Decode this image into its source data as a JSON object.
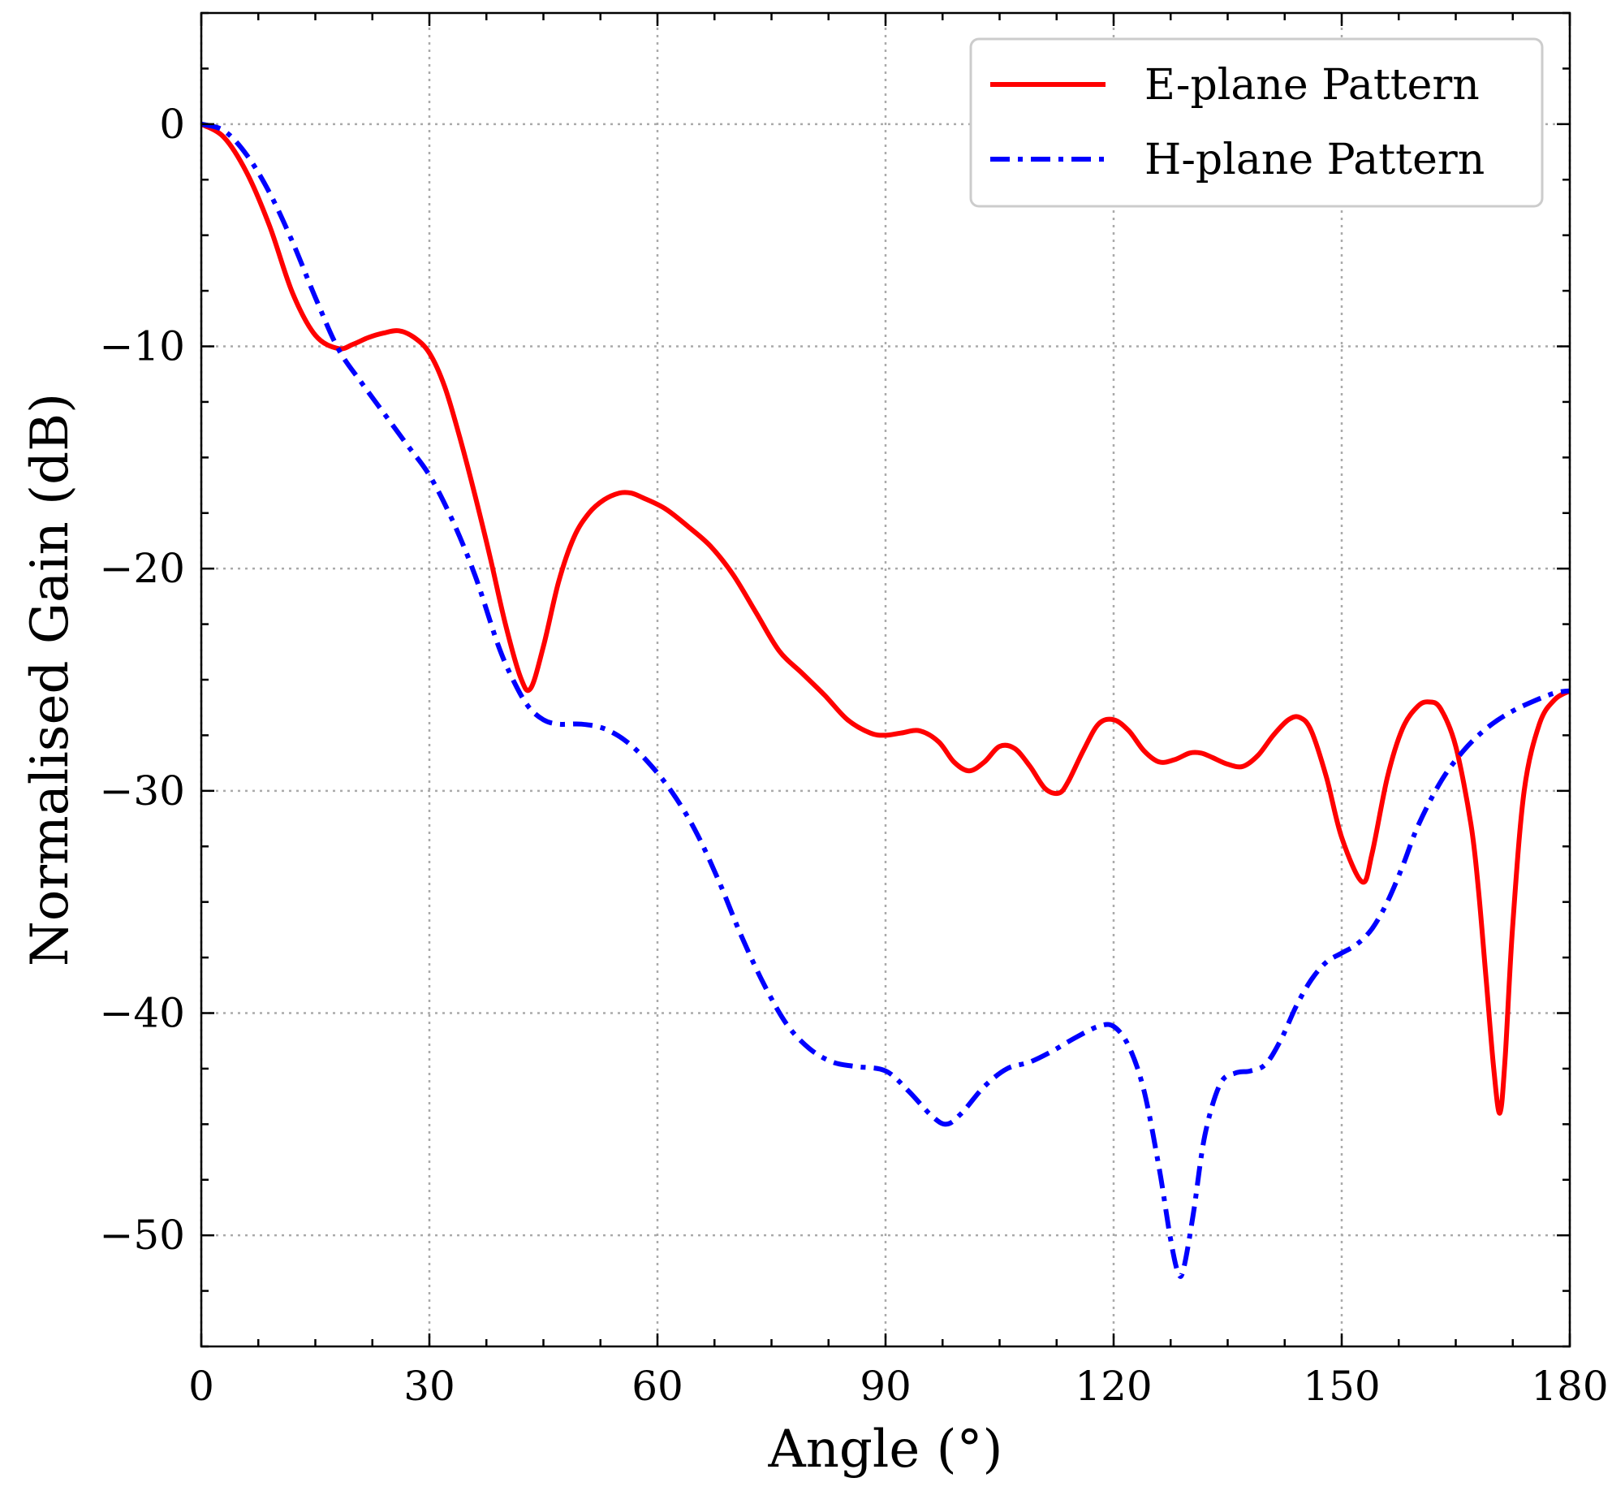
{
  "chart_data": {
    "type": "line",
    "title": "",
    "xlabel": "Angle (°)",
    "ylabel": "Normalised Gain (dB)",
    "xlim": [
      0,
      180
    ],
    "ylim": [
      -55,
      5
    ],
    "x_ticks": [
      0,
      30,
      60,
      90,
      120,
      150,
      180
    ],
    "y_ticks": [
      0,
      -10,
      -20,
      -30,
      -40,
      -50
    ],
    "x_tick_labels": [
      "0",
      "30",
      "60",
      "90",
      "120",
      "150",
      "180"
    ],
    "y_tick_labels": [
      "0",
      "−10",
      "−20",
      "−30",
      "−40",
      "−50"
    ],
    "grid": true,
    "legend_position": "top-right",
    "series": [
      {
        "name": "E-plane Pattern",
        "color": "#ff0000",
        "style": "solid",
        "x": [
          0,
          3,
          6,
          9,
          12,
          15,
          18,
          20,
          22,
          24,
          26,
          28,
          30,
          32,
          34,
          36,
          38,
          40,
          42,
          43.3,
          45,
          47,
          49,
          51,
          53,
          55,
          56.5,
          58,
          61,
          64,
          67,
          70,
          73,
          76,
          79,
          82,
          85,
          88,
          90,
          92,
          94.5,
          97,
          99,
          101,
          103,
          105,
          107,
          109,
          111,
          112.8,
          114,
          116,
          118,
          120,
          122,
          124,
          126,
          128,
          130,
          131.5,
          133,
          135,
          137,
          139,
          141,
          143,
          144.5,
          146,
          148,
          150,
          152.7,
          154,
          156,
          158,
          160,
          161.5,
          163,
          165,
          167,
          168,
          169,
          170,
          170.8,
          171.5,
          172.5,
          174,
          176,
          178,
          180
        ],
        "values": [
          0,
          -0.6,
          -2.2,
          -4.6,
          -7.6,
          -9.5,
          -10.1,
          -9.9,
          -9.6,
          -9.4,
          -9.3,
          -9.6,
          -10.3,
          -11.8,
          -14.1,
          -16.7,
          -19.5,
          -22.5,
          -24.9,
          -25.4,
          -23.5,
          -20.6,
          -18.6,
          -17.5,
          -16.9,
          -16.6,
          -16.6,
          -16.8,
          -17.3,
          -18.1,
          -19.0,
          -20.3,
          -22.0,
          -23.7,
          -24.7,
          -25.7,
          -26.8,
          -27.4,
          -27.5,
          -27.4,
          -27.3,
          -27.8,
          -28.7,
          -29.1,
          -28.7,
          -28.0,
          -28.1,
          -28.9,
          -29.9,
          -30.1,
          -29.6,
          -28.2,
          -27.0,
          -26.8,
          -27.3,
          -28.2,
          -28.7,
          -28.6,
          -28.3,
          -28.3,
          -28.5,
          -28.8,
          -28.9,
          -28.4,
          -27.5,
          -26.8,
          -26.7,
          -27.3,
          -29.4,
          -32.1,
          -34.1,
          -32.8,
          -29.4,
          -27.2,
          -26.2,
          -26.0,
          -26.3,
          -28.0,
          -31.5,
          -34.5,
          -38.5,
          -42.5,
          -44.5,
          -42.0,
          -36.0,
          -30.0,
          -27.0,
          -25.9,
          -25.5
        ]
      },
      {
        "name": "H-plane Pattern",
        "color": "#0000ff",
        "style": "dash-dot",
        "x": [
          0,
          3,
          6,
          9,
          12,
          15,
          18,
          21,
          24,
          27,
          30,
          33,
          36,
          39,
          41,
          43,
          45,
          47,
          50,
          53,
          56,
          59,
          62,
          65,
          68,
          71,
          74,
          77,
          80,
          83,
          86,
          90,
          93,
          96,
          98,
          100,
          103,
          106,
          109,
          112,
          115,
          118,
          120,
          122,
          124,
          126,
          127.5,
          128.5,
          129.2,
          130.5,
          132,
          134,
          136,
          138,
          140,
          142,
          144,
          146,
          148,
          150,
          152,
          154,
          156,
          158,
          160,
          163,
          166,
          169,
          172,
          175,
          178,
          180
        ],
        "values": [
          0,
          -0.3,
          -1.4,
          -3.1,
          -5.3,
          -7.8,
          -10.1,
          -11.6,
          -13.0,
          -14.4,
          -15.8,
          -17.8,
          -20.3,
          -23.4,
          -25.0,
          -26.2,
          -26.8,
          -27.0,
          -27.0,
          -27.2,
          -27.8,
          -28.8,
          -30.1,
          -31.8,
          -34.0,
          -36.5,
          -38.7,
          -40.5,
          -41.6,
          -42.2,
          -42.4,
          -42.6,
          -43.5,
          -44.6,
          -45.0,
          -44.5,
          -43.3,
          -42.5,
          -42.2,
          -41.7,
          -41.1,
          -40.6,
          -40.6,
          -41.5,
          -43.5,
          -47.0,
          -50.2,
          -51.7,
          -51.5,
          -49.0,
          -45.5,
          -43.2,
          -42.7,
          -42.6,
          -42.3,
          -41.2,
          -39.7,
          -38.5,
          -37.7,
          -37.3,
          -36.9,
          -36.2,
          -35.0,
          -33.4,
          -31.6,
          -29.6,
          -28.2,
          -27.2,
          -26.5,
          -26.0,
          -25.6,
          -25.5
        ]
      }
    ]
  }
}
